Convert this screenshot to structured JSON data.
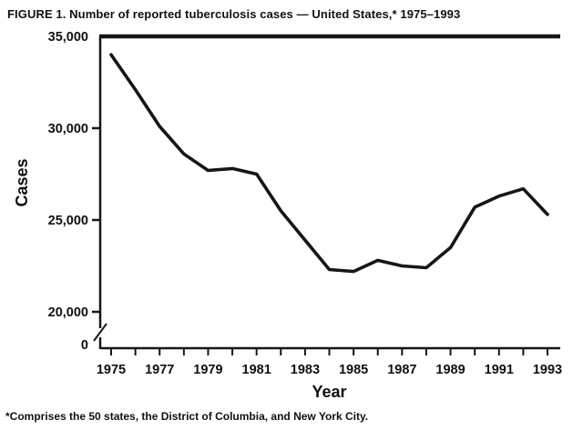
{
  "figure": {
    "title": "FIGURE 1. Number of reported tuberculosis cases — United States,* 1975–1993",
    "footnote": "*Comprises the 50 states, the District of Columbia, and New York City."
  },
  "chart_data": {
    "type": "line",
    "title": "FIGURE 1. Number of reported tuberculosis cases — United States,* 1975–1993",
    "x": [
      1975,
      1976,
      1977,
      1978,
      1979,
      1980,
      1981,
      1982,
      1983,
      1984,
      1985,
      1986,
      1987,
      1988,
      1989,
      1990,
      1991,
      1992,
      1993
    ],
    "series": [
      {
        "name": "Reported tuberculosis cases",
        "values": [
          34000,
          32100,
          30100,
          28600,
          27700,
          27800,
          27500,
          25500,
          23900,
          22300,
          22200,
          22800,
          22500,
          22400,
          23500,
          25700,
          26300,
          26700,
          25300
        ]
      }
    ],
    "xlabel": "Year",
    "ylabel": "Cases",
    "ylim": [
      20000,
      35000
    ],
    "yticks": [
      35000,
      30000,
      25000,
      20000,
      0
    ],
    "ytick_labels": [
      "35,000",
      "30,000",
      "25,000",
      "20,000",
      "0"
    ],
    "xtick_labels": [
      "1975",
      "1977",
      "1979",
      "1981",
      "1983",
      "1985",
      "1987",
      "1989",
      "1991",
      "1993"
    ],
    "axis_break": true,
    "grid": false,
    "legend": "none",
    "line_color": "#161616",
    "background": "#ffffff"
  }
}
